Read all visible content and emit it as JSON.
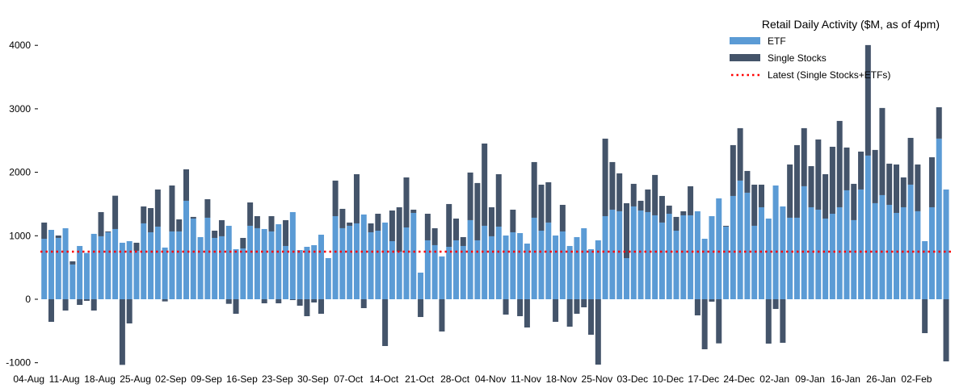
{
  "chart_data": {
    "type": "bar",
    "stacked": true,
    "title": "Retail Daily Activity ($M, as of 4pm)",
    "xlabel": "",
    "ylabel": "",
    "ylim": [
      -1100,
      4150
    ],
    "yticks": [
      -1000,
      0,
      1000,
      2000,
      3000,
      4000
    ],
    "grid": false,
    "legend_position": "top-right",
    "x_tick_labels": [
      "04-Aug",
      "11-Aug",
      "18-Aug",
      "25-Aug",
      "02-Sep",
      "09-Sep",
      "16-Sep",
      "23-Sep",
      "30-Sep",
      "07-Oct",
      "14-Oct",
      "21-Oct",
      "28-Oct",
      "04-Nov",
      "11-Nov",
      "18-Nov",
      "25-Nov",
      "03-Dec",
      "10-Dec",
      "17-Dec",
      "24-Dec",
      "02-Jan",
      "09-Jan",
      "16-Jan",
      "26-Jan",
      "02-Feb"
    ],
    "x_tick_every_n_bars": 5,
    "series": [
      {
        "name": "ETF",
        "color": "#5b9bd5",
        "values": [
          953,
          1093,
          966,
          1119,
          547,
          839,
          729,
          1030,
          992,
          1055,
          1106,
          890,
          915,
          763,
          1195,
          1055,
          1144,
          814,
          1068,
          1068,
          1551,
          1271,
          979,
          1284,
          966,
          992,
          1157,
          788,
          801,
          1157,
          1119,
          1106,
          1068,
          1182,
          839,
          1373,
          775,
          826,
          852,
          1017,
          648,
          1309,
          1119,
          1157,
          1195,
          1335,
          1055,
          1080,
          1208,
          915,
          750,
          1131,
          1360,
          419,
          928,
          852,
          674,
          826,
          928,
          839,
          1246,
          928,
          1157,
          992,
          1144,
          1004,
          1055,
          1042,
          877,
          1284,
          1080,
          1208,
          1004,
          1068,
          839,
          979,
          1119,
          788,
          928,
          1309,
          1411,
          1386,
          648,
          1462,
          1398,
          1373,
          1322,
          1208,
          1347,
          1080,
          1322,
          1322,
          1386,
          953,
          1309,
          1589,
          1144,
          1627,
          1869,
          1678,
          1157,
          1449,
          1271,
          1792,
          1462,
          1284,
          1284,
          1780,
          1449,
          1411,
          1271,
          1347,
          1449,
          1716,
          1246,
          1729,
          2263,
          1513,
          1640,
          1487,
          1360,
          1449,
          1805,
          1386,
          915,
          1449,
          2530,
          1729
        ]
      },
      {
        "name": "Single Stocks",
        "color": "#44546a",
        "values": [
          255,
          -356,
          38,
          -178,
          50,
          -89,
          -25,
          -178,
          381,
          13,
          525,
          -1034,
          -381,
          127,
          267,
          381,
          585,
          -34,
          724,
          190,
          496,
          26,
          0,
          292,
          114,
          254,
          -72,
          -229,
          165,
          368,
          190,
          -64,
          241,
          -64,
          407,
          -13,
          -102,
          -267,
          -51,
          -229,
          0,
          560,
          305,
          51,
          775,
          -140,
          140,
          267,
          -737,
          483,
          699,
          788,
          51,
          -280,
          419,
          267,
          -508,
          674,
          343,
          140,
          750,
          903,
          1296,
          457,
          826,
          -242,
          356,
          -267,
          -445,
          877,
          725,
          635,
          -356,
          419,
          -432,
          -229,
          -127,
          -559,
          -1030,
          1221,
          750,
          597,
          865,
          356,
          153,
          356,
          636,
          419,
          128,
          217,
          64,
          458,
          -254,
          -788,
          -38,
          -695,
          13,
          801,
          826,
          343,
          648,
          356,
          -699,
          -153,
          -686,
          839,
          1144,
          915,
          648,
          1106,
          699,
          1055,
          1360,
          674,
          572,
          597,
          1741,
          839,
          1373,
          649,
          763,
          470,
          737,
          737,
          -534,
          788,
          495,
          -979
        ]
      }
    ],
    "reference_line": {
      "name": "Latest (Single Stocks+ETFs)",
      "value": 750,
      "color": "#ff0000",
      "style": "dotted"
    }
  }
}
